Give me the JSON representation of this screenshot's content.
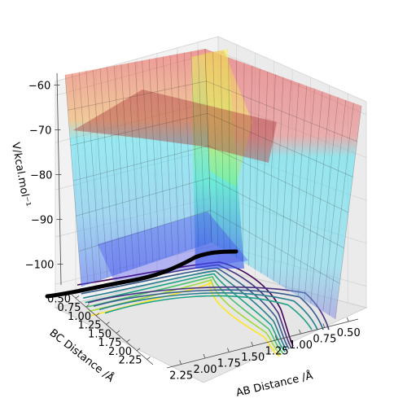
{
  "chart_data": {
    "type": "surface3d",
    "title": "",
    "zlabel": "V/kcal.mol⁻¹",
    "xlabel": "AB Distance /Å",
    "ylabel": "BC Distance /Å",
    "z_ticks": [
      "−100",
      "−90",
      "−80",
      "−70",
      "−60"
    ],
    "z_tick_values": [
      -100,
      -90,
      -80,
      -70,
      -60
    ],
    "zlim": [
      -105,
      -57
    ],
    "x_ticks": [
      "2.25",
      "2.00",
      "1.75",
      "1.50",
      "1.25",
      "1.00",
      "0.75",
      "0.50"
    ],
    "x_tick_values": [
      2.25,
      2.0,
      1.75,
      1.5,
      1.25,
      1.0,
      0.75,
      0.5
    ],
    "xlim": [
      0.4,
      2.4
    ],
    "y_ticks": [
      "0.50",
      "0.75",
      "1.00",
      "1.25",
      "1.50",
      "1.75",
      "2.00",
      "2.25"
    ],
    "y_tick_values": [
      0.5,
      0.75,
      1.0,
      1.25,
      1.5,
      1.75,
      2.0,
      2.25
    ],
    "ylim": [
      0.4,
      2.4
    ],
    "colormap": "jet",
    "surface_alpha": 0.4,
    "grid": true,
    "contour_projection": "floor",
    "trajectory_color": "#000000",
    "colors": {
      "pane": "#f2f2f2",
      "grid": "#d0d0d0",
      "high": "#e84040",
      "cyan": "#40e0f0",
      "mid": "#a0f060",
      "yellow": "#f8f060",
      "low": "#3050f0"
    }
  }
}
